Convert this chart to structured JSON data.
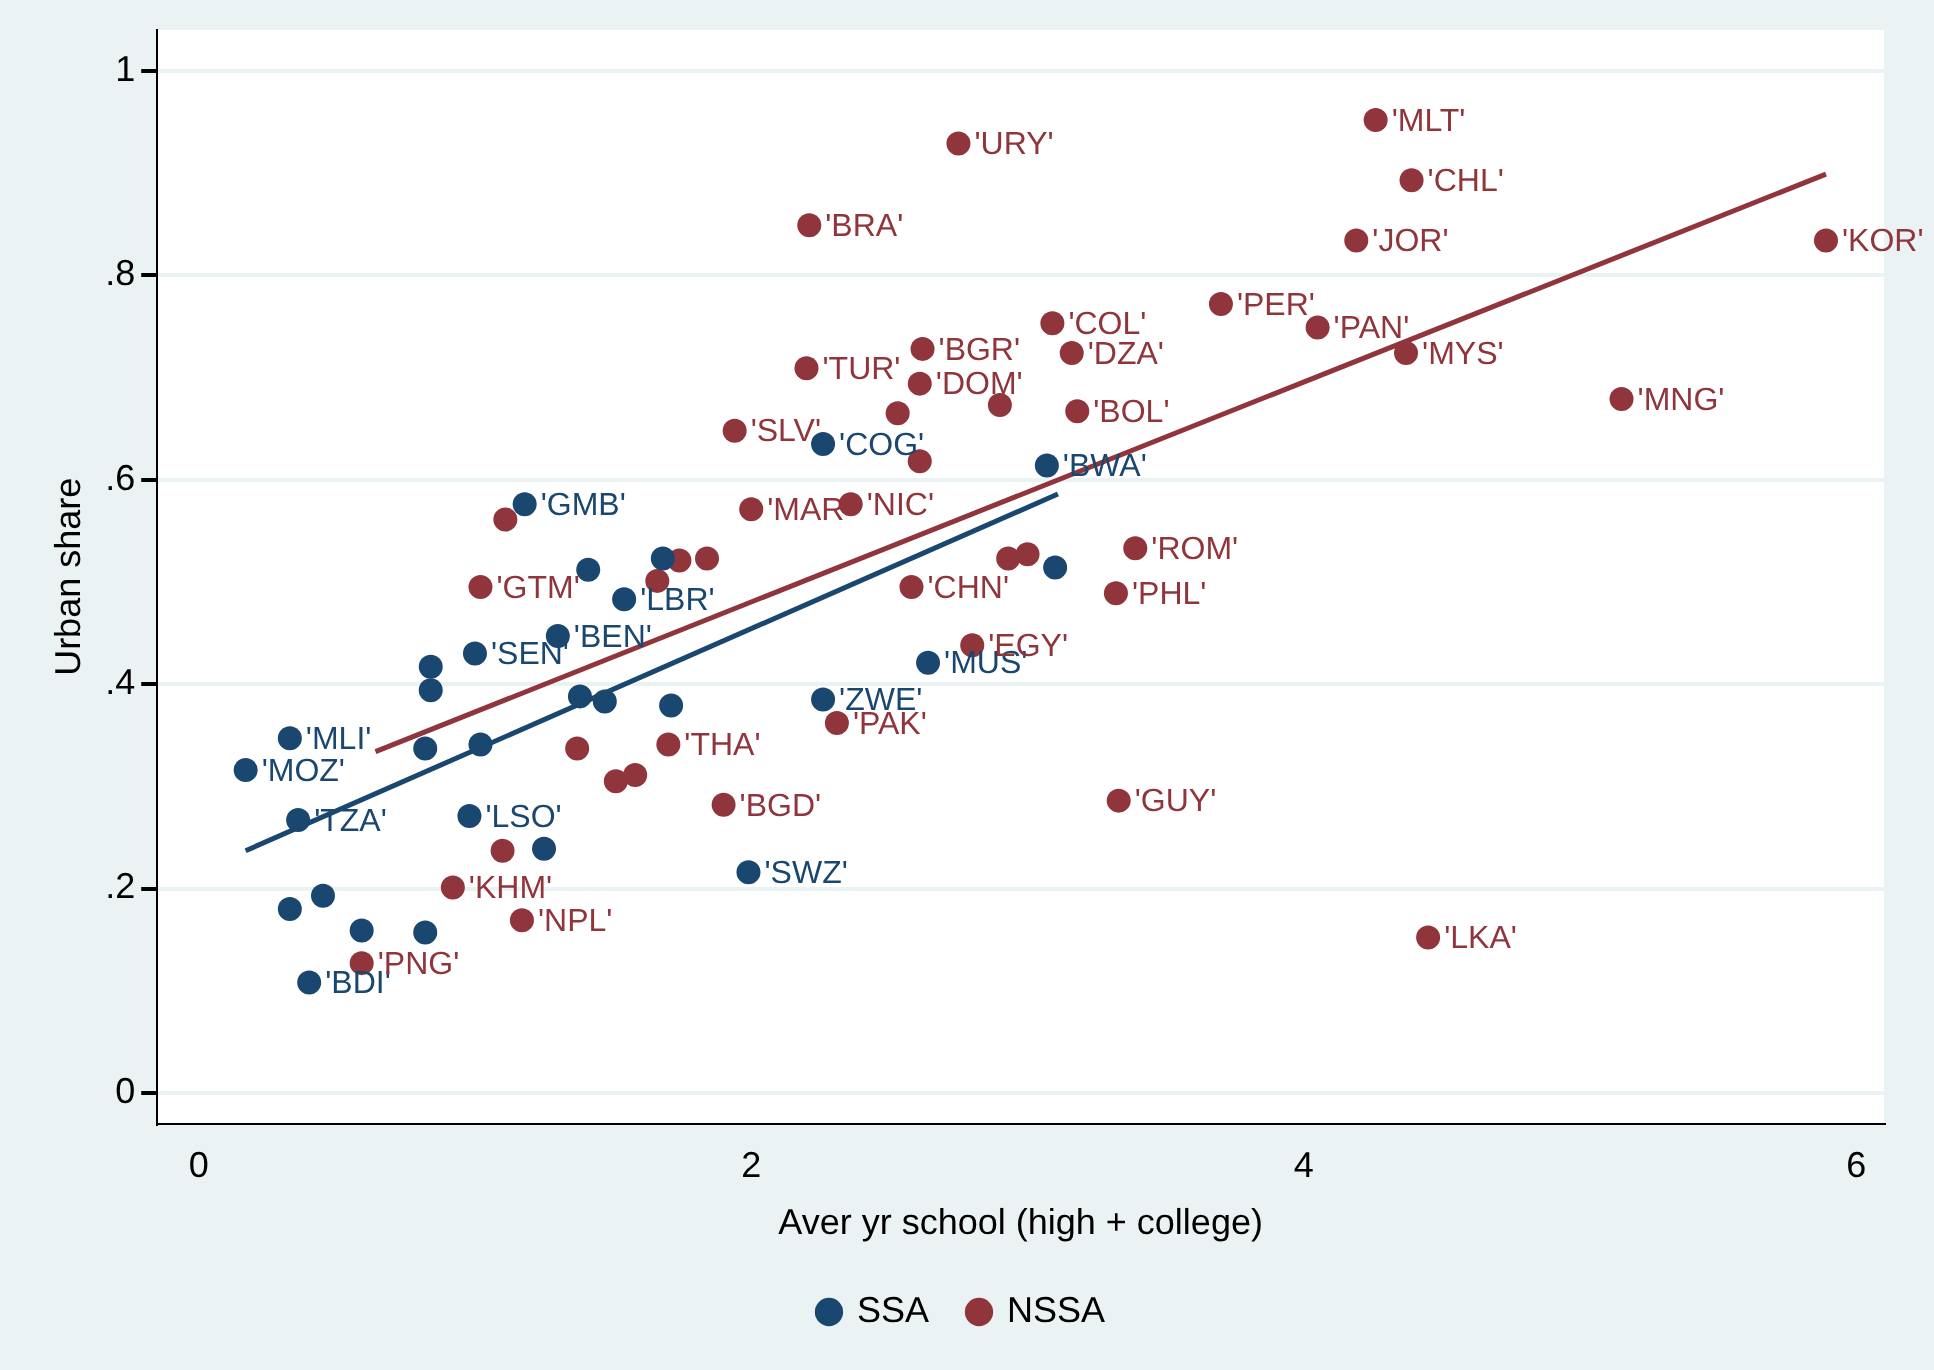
{
  "chart_data": {
    "type": "scatter",
    "xlabel": "Aver yr school (high + college)",
    "ylabel": "Urban share",
    "xlim": [
      -0.15,
      6.1
    ],
    "ylim": [
      -0.03,
      1.04
    ],
    "xticks": [
      0,
      2,
      4,
      6
    ],
    "yticks": [
      0,
      {
        "value": 0.2,
        "label": ".2"
      },
      {
        "value": 0.4,
        "label": ".4"
      },
      {
        "value": 0.6,
        "label": ".6"
      },
      {
        "value": 0.8,
        "label": ".8"
      },
      1
    ],
    "grid": "y",
    "legend": "bottom",
    "marker": "circle",
    "series": [
      {
        "name": "SSA",
        "color": "#1a476f",
        "type": "scatter",
        "x": [
          1.18,
          1.41,
          1.68,
          1.54,
          1.3,
          1.0,
          0.84,
          0.84,
          1.38,
          1.47,
          1.71,
          0.33,
          0.82,
          1.02,
          0.17,
          0.36,
          0.98,
          1.25,
          1.99,
          0.45,
          0.33,
          0.59,
          0.82,
          0.4,
          2.26,
          3.07,
          3.1,
          2.64,
          2.26
        ],
        "values": [
          0.576,
          0.512,
          0.523,
          0.483,
          0.447,
          0.43,
          0.417,
          0.394,
          0.388,
          0.383,
          0.379,
          0.347,
          0.337,
          0.341,
          0.316,
          0.267,
          0.271,
          0.239,
          0.216,
          0.193,
          0.18,
          0.159,
          0.157,
          0.108,
          0.635,
          0.614,
          0.514,
          0.421,
          0.385
        ],
        "value_labels": [
          "'GMB'",
          null,
          null,
          "'LBR'",
          "'BEN'",
          "'SEN'",
          null,
          null,
          null,
          null,
          null,
          "'MLI'",
          null,
          null,
          "'MOZ'",
          "'TZA'",
          "'LSO'",
          null,
          "'SWZ'",
          null,
          null,
          null,
          null,
          "'BDI'",
          "'COG'",
          "'BWA'",
          null,
          "'MUS'",
          "'ZWE'"
        ]
      },
      {
        "name": "NSSA",
        "color": "#90353b",
        "type": "scatter",
        "x": [
          1.11,
          2.0,
          1.66,
          1.74,
          1.84,
          1.02,
          1.37,
          1.7,
          1.1,
          1.51,
          1.58,
          1.9,
          0.92,
          1.17,
          0.59,
          3.7,
          3.09,
          2.62,
          3.16,
          2.2,
          2.61,
          2.53,
          2.9,
          3.18,
          1.94,
          2.61,
          2.36,
          2.58,
          2.93,
          3.0,
          3.39,
          3.32,
          2.8,
          2.31,
          3.33,
          2.75,
          2.21,
          4.26,
          4.39,
          4.19,
          5.89,
          4.05,
          4.37,
          5.15,
          4.45
        ],
        "values": [
          0.561,
          0.571,
          0.501,
          0.521,
          0.523,
          0.495,
          0.337,
          0.341,
          0.237,
          0.305,
          0.311,
          0.282,
          0.201,
          0.169,
          0.127,
          0.772,
          0.753,
          0.728,
          0.724,
          0.709,
          0.694,
          0.665,
          0.673,
          0.667,
          0.648,
          0.618,
          0.576,
          0.495,
          0.523,
          0.527,
          0.533,
          0.489,
          0.438,
          0.362,
          0.286,
          0.929,
          0.849,
          0.952,
          0.893,
          0.834,
          0.834,
          0.749,
          0.724,
          0.679,
          0.152
        ],
        "value_labels": [
          null,
          "'MAR'",
          null,
          null,
          null,
          "'GTM'",
          null,
          "'THA'",
          null,
          null,
          null,
          "'BGD'",
          "'KHM'",
          "'NPL'",
          "'PNG'",
          "'PER'",
          "'COL'",
          "'BGR'",
          "'DZA'",
          "'TUR'",
          "'DOM'",
          null,
          null,
          "'BOL'",
          "'SLV'",
          null,
          "'NIC'",
          "'CHN'",
          null,
          null,
          "'ROM'",
          "'PHL'",
          "'EGY'",
          "'PAK'",
          "'GUY'",
          "'URY'",
          "'BRA'",
          "'MLT'",
          "'CHL'",
          "'JOR'",
          "'KOR'",
          "'PAN'",
          "'MYS'",
          "'MNG'",
          "'LKA'"
        ]
      },
      {
        "type": "line",
        "color": "#90353b",
        "marker": "none",
        "x": [
          0.64,
          5.89
        ],
        "values": [
          0.334,
          0.899
        ]
      },
      {
        "type": "line",
        "color": "#1a476f",
        "marker": "none",
        "x": [
          0.17,
          3.11
        ],
        "values": [
          0.237,
          0.586
        ]
      }
    ]
  }
}
